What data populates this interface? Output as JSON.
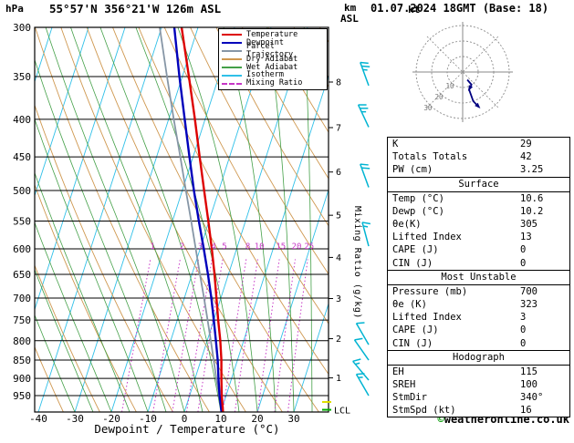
{
  "header": {
    "pressure_unit": "hPa",
    "title": "55°57'N 356°21'W 126m ASL",
    "km_label": "km",
    "asl_label": "ASL",
    "datetime": "01.07.2024 18GMT (Base: 18)"
  },
  "footer": {
    "copyright_symbol": "©",
    "copyright_text": "weatheronline.co.uk"
  },
  "colors": {
    "temperature": "#dd0000",
    "dewpoint": "#0000bb",
    "parcel": "#8696a6",
    "dry_adiabat": "#cf9850",
    "wet_adiabat": "#44a048",
    "isotherm": "#30c0e8",
    "mixing_ratio": "#c637c6",
    "wind_barb": "#00b4d2",
    "grid": "#000000",
    "hodo_ring": "#8a8a8a",
    "hodo_trace": "#000080",
    "lcl_tick": "#00aa00",
    "cloud_tick": "#dede00",
    "copyright_symbol_color": "#009900"
  },
  "legend": [
    {
      "label": "Temperature",
      "color": "#dd0000",
      "style": "solid"
    },
    {
      "label": "Dewpoint",
      "color": "#0000bb",
      "style": "solid"
    },
    {
      "label": "Parcel Trajectory",
      "color": "#8696a6",
      "style": "solid"
    },
    {
      "label": "Dry Adiabat",
      "color": "#cf9850",
      "style": "solid"
    },
    {
      "label": "Wet Adiabat",
      "color": "#44a048",
      "style": "solid"
    },
    {
      "label": "Isotherm",
      "color": "#30c0e8",
      "style": "solid"
    },
    {
      "label": "Mixing Ratio",
      "color": "#c637c6",
      "style": "dotted"
    }
  ],
  "chart_data": {
    "type": "skewt_log_p_sounding",
    "pressure_axis": {
      "unit": "hPa",
      "ticks": [
        300,
        350,
        400,
        450,
        500,
        550,
        600,
        650,
        700,
        750,
        800,
        850,
        900,
        950
      ],
      "range": [
        300,
        1000
      ]
    },
    "temp_axis": {
      "label": "Dewpoint / Temperature (°C)",
      "unit": "°C",
      "ticks": [
        -40,
        -30,
        -20,
        -10,
        0,
        10,
        20,
        30
      ]
    },
    "km_axis": {
      "unit": "km ASL",
      "ticks": [
        1,
        2,
        3,
        4,
        5,
        6,
        7,
        8
      ]
    },
    "mixing_ratio": {
      "label": "Mixing Ratio (g/kg)",
      "values": [
        1,
        2,
        3,
        4,
        5,
        8,
        10,
        15,
        20,
        25
      ]
    },
    "isotherm_step_c": 10,
    "dry_adiabat_step_k": 10,
    "wet_adiabat_step_c": 5,
    "lcl": {
      "label": "LCL",
      "pressure_hpa": 993
    },
    "sounding": {
      "pressure_hpa": [
        1000,
        950,
        900,
        850,
        800,
        750,
        700,
        650,
        600,
        550,
        500,
        450,
        400,
        350,
        300
      ],
      "temperature_c": [
        10.6,
        8.8,
        7.2,
        5.6,
        3.6,
        1.2,
        -1.2,
        -3.8,
        -6.8,
        -10.2,
        -14.0,
        -18.2,
        -22.8,
        -28.2,
        -34.5
      ],
      "dewpoint_c": [
        10.2,
        8.2,
        6.4,
        4.6,
        2.4,
        0.0,
        -2.6,
        -5.6,
        -9.0,
        -12.8,
        -16.8,
        -21.0,
        -25.6,
        -30.8,
        -36.5
      ],
      "parcel_c": [
        10.6,
        8.1,
        5.8,
        3.5,
        1.0,
        -1.7,
        -4.6,
        -7.8,
        -11.2,
        -14.9,
        -19.0,
        -23.5,
        -28.6,
        -34.2,
        -40.5
      ]
    },
    "wind_barbs": [
      {
        "pressure_hpa": 360,
        "dir_deg": 340,
        "speed_kt": 25
      },
      {
        "pressure_hpa": 410,
        "dir_deg": 335,
        "speed_kt": 25
      },
      {
        "pressure_hpa": 495,
        "dir_deg": 340,
        "speed_kt": 20
      },
      {
        "pressure_hpa": 595,
        "dir_deg": 345,
        "speed_kt": 15
      },
      {
        "pressure_hpa": 810,
        "dir_deg": 330,
        "speed_kt": 10
      },
      {
        "pressure_hpa": 850,
        "dir_deg": 325,
        "speed_kt": 10
      },
      {
        "pressure_hpa": 905,
        "dir_deg": 320,
        "speed_kt": 15
      },
      {
        "pressure_hpa": 950,
        "dir_deg": 330,
        "speed_kt": 15
      }
    ]
  },
  "hodograph": {
    "unit_label": "kt",
    "ring_radii_kt": [
      10,
      20,
      30
    ],
    "trace_uv_kt": [
      [
        3,
        5
      ],
      [
        5.7,
        8.2
      ],
      [
        4.1,
        11.3
      ],
      [
        6.8,
        18.8
      ],
      [
        10.6,
        22.7
      ]
    ]
  },
  "stats": {
    "top_rows": [
      {
        "label": "K",
        "value": "29"
      },
      {
        "label": "Totals Totals",
        "value": "42"
      },
      {
        "label": "PW (cm)",
        "value": "3.25"
      }
    ],
    "sections": [
      {
        "header": "Surface",
        "rows": [
          {
            "label": "Temp (°C)",
            "value": "10.6"
          },
          {
            "label": "Dewp (°C)",
            "value": "10.2"
          },
          {
            "label": "θe(K)",
            "value": "305"
          },
          {
            "label": "Lifted Index",
            "value": "13"
          },
          {
            "label": "CAPE (J)",
            "value": "0"
          },
          {
            "label": "CIN (J)",
            "value": "0"
          }
        ]
      },
      {
        "header": "Most Unstable",
        "rows": [
          {
            "label": "Pressure (mb)",
            "value": "700"
          },
          {
            "label": "θe (K)",
            "value": "323"
          },
          {
            "label": "Lifted Index",
            "value": "3"
          },
          {
            "label": "CAPE (J)",
            "value": "0"
          },
          {
            "label": "CIN (J)",
            "value": "0"
          }
        ]
      },
      {
        "header": "Hodograph",
        "rows": [
          {
            "label": "EH",
            "value": "115"
          },
          {
            "label": "SREH",
            "value": "100"
          },
          {
            "label": "StmDir",
            "value": "340°"
          },
          {
            "label": "StmSpd (kt)",
            "value": "16"
          }
        ]
      }
    ]
  }
}
